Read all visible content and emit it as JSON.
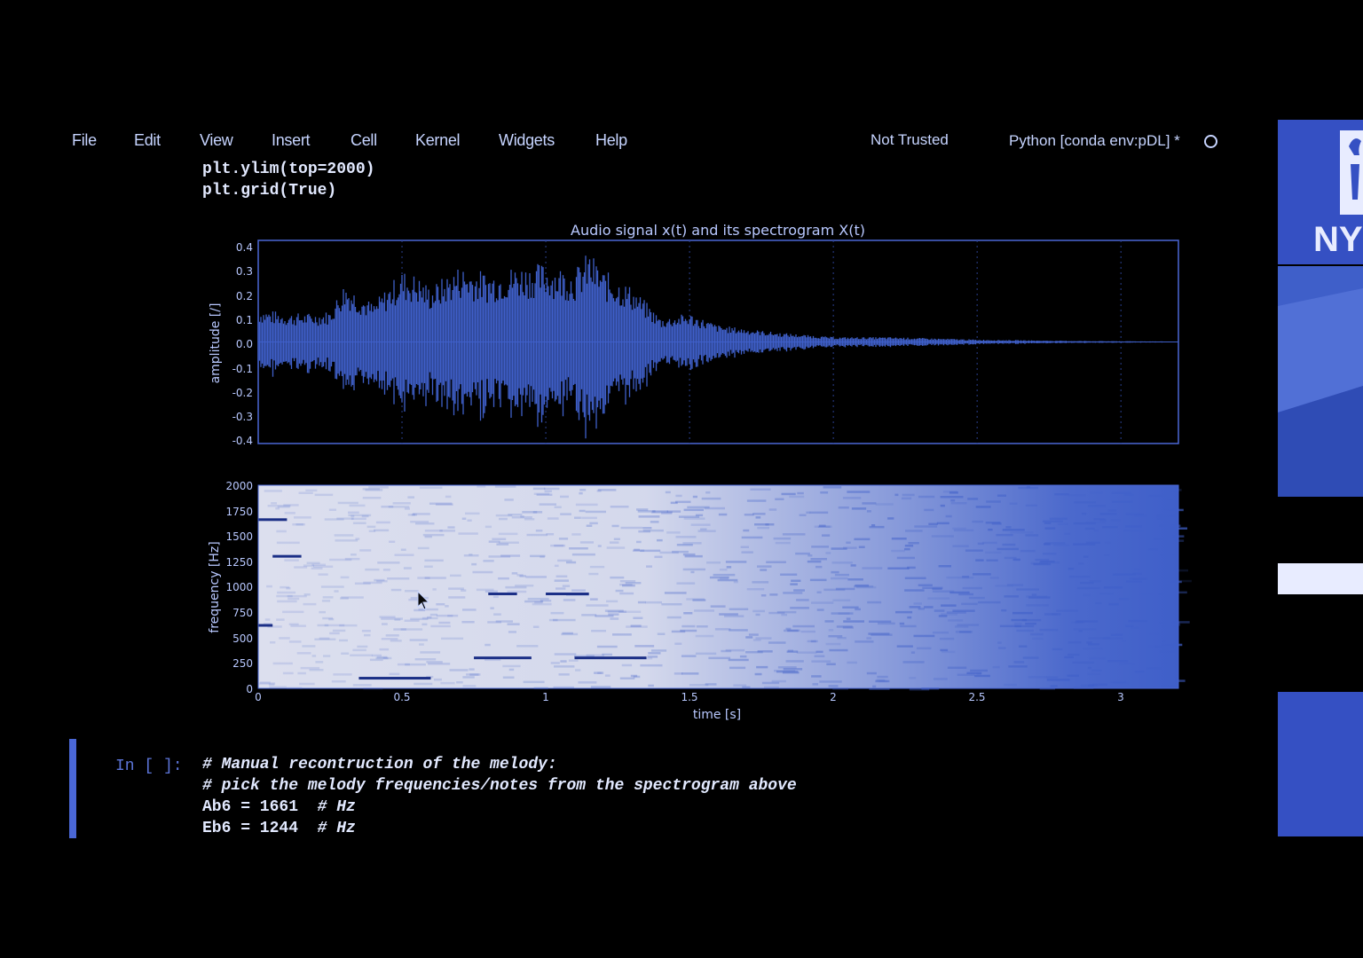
{
  "menu": {
    "items": [
      {
        "label": "File"
      },
      {
        "label": "Edit"
      },
      {
        "label": "View"
      },
      {
        "label": "Insert"
      },
      {
        "label": "Cell"
      },
      {
        "label": "Kernel"
      },
      {
        "label": "Widgets"
      },
      {
        "label": "Help"
      }
    ],
    "trust_status": "Not Trusted",
    "kernel_label": "Python [conda env:pDL] *"
  },
  "previous_cell": {
    "lines": [
      "plt.ylim(top=2000)",
      "plt.grid(True)"
    ]
  },
  "figure": {
    "title": "Audio signal x(t) and its spectrogram X(t)",
    "signal_panel": {
      "ylabel": "amplitude [/]",
      "y_ticks": [
        "0.4",
        "0.3",
        "0.2",
        "0.1",
        "0.0",
        "-0.1",
        "-0.2",
        "-0.3",
        "-0.4"
      ]
    },
    "spectrogram_panel": {
      "ylabel": "frequency [Hz]",
      "y_ticks": [
        "2000",
        "1750",
        "1500",
        "1250",
        "1000",
        "750",
        "500",
        "250",
        "0"
      ],
      "xlabel": "time [s]",
      "x_ticks": [
        "0",
        "0.5",
        "1",
        "1.5",
        "2",
        "2.5",
        "3"
      ]
    }
  },
  "chart_data": [
    {
      "type": "line",
      "title": "Audio signal x(t) and its spectrogram X(t)",
      "xlabel": "",
      "ylabel": "amplitude [/]",
      "xlim": [
        0,
        3.2
      ],
      "ylim": [
        -0.4,
        0.4
      ],
      "grid": true,
      "series": [
        {
          "x": [
            0,
            0.1,
            0.2,
            0.25,
            0.3,
            0.4,
            0.5,
            0.55,
            0.6,
            0.7,
            0.8,
            0.9,
            1.0,
            1.1,
            1.15,
            1.2,
            1.3,
            1.4,
            1.5,
            1.6,
            1.8,
            2.0,
            2.2,
            2.5,
            2.8,
            3.0,
            3.2
          ],
          "y": [
            0.14,
            0.12,
            0.12,
            0.13,
            0.25,
            0.16,
            0.3,
            0.28,
            0.23,
            0.32,
            0.29,
            0.32,
            0.33,
            0.3,
            0.38,
            0.3,
            0.23,
            0.1,
            0.12,
            0.07,
            0.04,
            0.02,
            0.02,
            0.01,
            0.005,
            0.003,
            0.002
          ]
        }
      ]
    },
    {
      "type": "heatmap",
      "title": "",
      "xlabel": "time [s]",
      "ylabel": "frequency [Hz]",
      "xlim": [
        0,
        3.2
      ],
      "ylim": [
        0,
        2000
      ],
      "grid": true,
      "strong_bins": [
        {
          "t_start": 0.35,
          "t_end": 0.6,
          "freq": 100
        },
        {
          "t_start": 0.75,
          "t_end": 0.95,
          "freq": 300
        },
        {
          "t_start": 1.1,
          "t_end": 1.35,
          "freq": 300
        },
        {
          "t_start": 0.8,
          "t_end": 0.9,
          "freq": 930
        },
        {
          "t_start": 1.0,
          "t_end": 1.15,
          "freq": 930
        },
        {
          "t_start": 0.0,
          "t_end": 0.05,
          "freq": 620
        },
        {
          "t_start": 0.0,
          "t_end": 0.1,
          "freq": 1661
        },
        {
          "t_start": 0.05,
          "t_end": 0.15,
          "freq": 1300
        }
      ]
    }
  ],
  "current_cell": {
    "prompt": "In [ ]:",
    "lines": [
      {
        "code": "# Manual recontruction of the melody:",
        "comment": true
      },
      {
        "code": "# pick the melody frequencies/notes from the spectrogram above",
        "comment": true
      },
      {
        "code": "Ab6 = 1661  ",
        "suffix": "# Hz"
      },
      {
        "code": "Eb6 = 1244  ",
        "suffix": "# Hz"
      }
    ]
  },
  "side_panel": {
    "logo_text": "NY"
  },
  "colors": {
    "accent": "#4a67d6",
    "plot_blue": "#3f5fc9",
    "spec_bg": "#dcdfee",
    "text": "#c6d4ff"
  }
}
